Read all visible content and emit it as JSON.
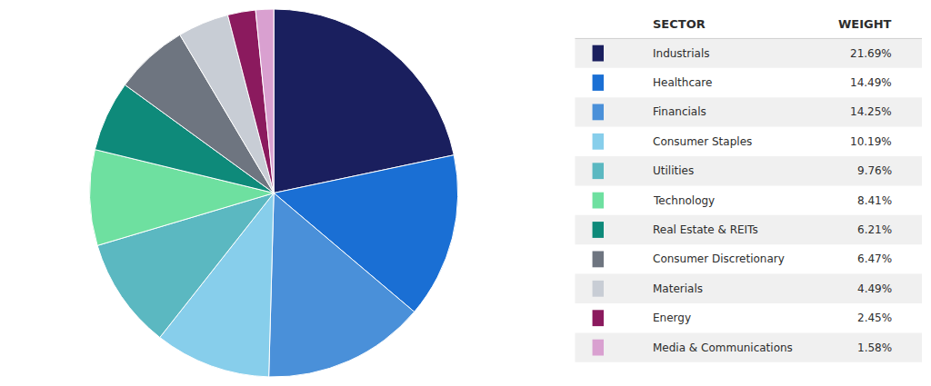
{
  "chart_data": {
    "type": "pie",
    "categories": [
      "Industrials",
      "Healthcare",
      "Financials",
      "Consumer Staples",
      "Utilities",
      "Technology",
      "Real Estate & REITs",
      "Consumer Discretionary",
      "Materials",
      "Energy",
      "Media & Communications"
    ],
    "values": [
      21.69,
      14.49,
      14.25,
      10.19,
      9.76,
      8.41,
      6.21,
      6.47,
      4.49,
      2.45,
      1.58
    ],
    "value_labels": [
      "21.69%",
      "14.49%",
      "14.25%",
      "10.19%",
      "9.76%",
      "8.41%",
      "6.21%",
      "6.47%",
      "4.49%",
      "2.45%",
      "1.58%"
    ],
    "colors": [
      "#1a1f5e",
      "#1a6fd4",
      "#4a90d9",
      "#87ceeb",
      "#5bb8c1",
      "#6ee0a0",
      "#0e8a7a",
      "#6e7580",
      "#c8cdd5",
      "#8b1a5e",
      "#d9a0d0"
    ],
    "annotations": [
      "SECTOR",
      "WEIGHT"
    ]
  }
}
